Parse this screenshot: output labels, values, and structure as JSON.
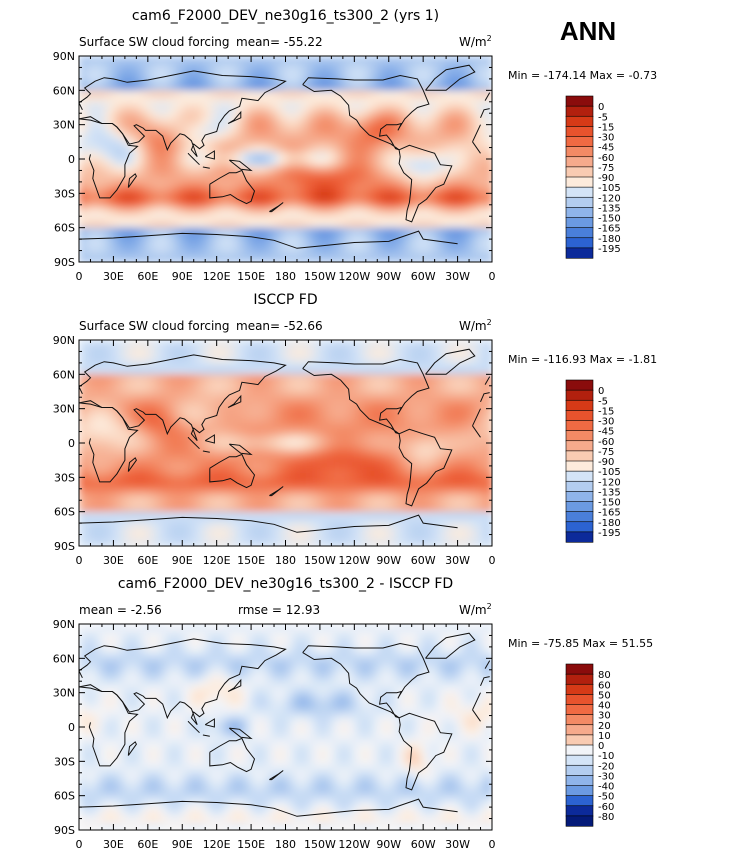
{
  "season": "ANN",
  "axes": {
    "lat_labels": [
      "90N",
      "60N",
      "30N",
      "0",
      "30S",
      "60S",
      "90S"
    ],
    "lon_labels": [
      "0",
      "30E",
      "60E",
      "90E",
      "120E",
      "150E",
      "180",
      "150W",
      "120W",
      "90W",
      "60W",
      "30W",
      "0"
    ]
  },
  "colors": {
    "positive_scale": [
      "#8a0c0c",
      "#b2200e",
      "#d63a17",
      "#e8532d",
      "#f06a43",
      "#f38a65",
      "#f6aa8c",
      "#f9cbb2",
      "#fdebdc"
    ],
    "negative_scale": [
      "#d4e4f7",
      "#b3cdf0",
      "#8fb4ea",
      "#6b9ae2",
      "#4a7fda",
      "#2c63d2",
      "#1846b8",
      "#0c2a9a",
      "#041a78"
    ],
    "diff_zero": "#f2f4f8"
  },
  "panels": [
    {
      "id": "model",
      "title": "cam6_F2000_DEV_ne30g16_ts300_2 (yrs 1)",
      "left_label": "Surface SW cloud forcing",
      "mean_text": "mean=  -55.22",
      "units_main": "W/m",
      "units_sup": "2",
      "min_max_text": "Min = -174.14 Max =  -0.73"
    },
    {
      "id": "obs",
      "title": "ISCCP FD",
      "left_label": "Surface SW cloud forcing",
      "mean_text": "mean=  -52.66",
      "units_main": "W/m",
      "units_sup": "2",
      "min_max_text": "Min = -116.93 Max =  -1.81"
    },
    {
      "id": "diff",
      "title": "cam6_F2000_DEV_ne30g16_ts300_2 - ISCCP FD",
      "left_label": "mean =   -2.56",
      "mean_text": "rmse =   12.93",
      "units_main": "W/m",
      "units_sup": "2",
      "min_max_text": "Min = -75.85 Max =  51.55"
    }
  ],
  "chart_data": [
    {
      "type": "heatmap",
      "title": "cam6_F2000_DEV_ne30g16_ts300_2 (yrs 1)",
      "variable": "Surface SW cloud forcing",
      "units": "W/m2",
      "mean": -55.22,
      "min": -174.14,
      "max": -0.73,
      "xlim": [
        0,
        360
      ],
      "ylim": [
        -90,
        90
      ],
      "colorbar_levels": [
        "0",
        "-5",
        "-15",
        "-30",
        "-45",
        "-60",
        "-75",
        "-90",
        "-105",
        "-120",
        "-135",
        "-150",
        "-165",
        "-180",
        "-195"
      ],
      "colorbar_colors": [
        "#8a0c0c",
        "#b2200e",
        "#d63a17",
        "#e8532d",
        "#f06a43",
        "#f38a65",
        "#f6aa8c",
        "#f9cbb2",
        "#fdebdc",
        "#d4e4f7",
        "#b3cdf0",
        "#8fb4ea",
        "#6b9ae2",
        "#4a7fda",
        "#2c63d2",
        "#0c2a9a"
      ]
    },
    {
      "type": "heatmap",
      "title": "ISCCP FD",
      "variable": "Surface SW cloud forcing",
      "units": "W/m2",
      "mean": -52.66,
      "min": -116.93,
      "max": -1.81,
      "xlim": [
        0,
        360
      ],
      "ylim": [
        -90,
        90
      ],
      "colorbar_levels": [
        "0",
        "-5",
        "-15",
        "-30",
        "-45",
        "-60",
        "-75",
        "-90",
        "-105",
        "-120",
        "-135",
        "-150",
        "-165",
        "-180",
        "-195"
      ],
      "colorbar_colors": [
        "#8a0c0c",
        "#b2200e",
        "#d63a17",
        "#e8532d",
        "#f06a43",
        "#f38a65",
        "#f6aa8c",
        "#f9cbb2",
        "#fdebdc",
        "#d4e4f7",
        "#b3cdf0",
        "#8fb4ea",
        "#6b9ae2",
        "#4a7fda",
        "#2c63d2",
        "#0c2a9a"
      ]
    },
    {
      "type": "heatmap",
      "title": "cam6_F2000_DEV_ne30g16_ts300_2 - ISCCP FD",
      "units": "W/m2",
      "mean": -2.56,
      "rmse": 12.93,
      "min": -75.85,
      "max": 51.55,
      "xlim": [
        0,
        360
      ],
      "ylim": [
        -90,
        90
      ],
      "colorbar_levels": [
        "80",
        "60",
        "50",
        "40",
        "30",
        "20",
        "10",
        "0",
        "-10",
        "-20",
        "-30",
        "-40",
        "-50",
        "-60",
        "-80"
      ],
      "colorbar_colors": [
        "#8a0c0c",
        "#b2200e",
        "#d63a17",
        "#e8532d",
        "#f06a43",
        "#f38a65",
        "#f6aa8c",
        "#f9cbb2",
        "#f2f4f8",
        "#d4e4f7",
        "#b3cdf0",
        "#8fb4ea",
        "#6b9ae2",
        "#2c63d2",
        "#0c2a9a",
        "#041a78"
      ]
    }
  ]
}
